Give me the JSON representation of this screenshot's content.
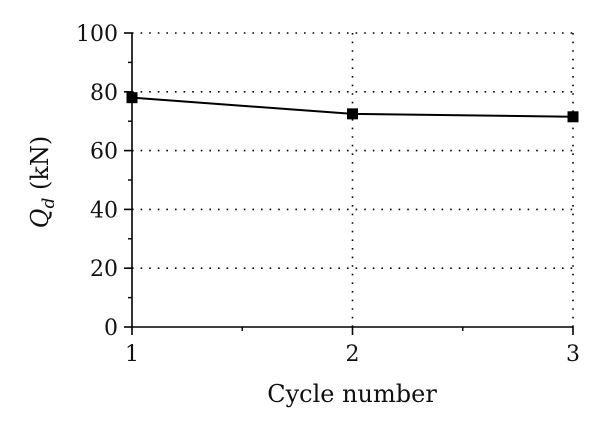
{
  "chart_data": {
    "type": "line",
    "x": [
      1,
      2,
      3
    ],
    "series": [
      {
        "values": [
          78,
          72.5,
          71.5
        ],
        "color": "#000000",
        "marker": "square"
      }
    ],
    "xlabel": "Cycle number",
    "ylabel": {
      "main": "Q",
      "subscript": "d",
      "unit": " (kN)"
    },
    "xlim": [
      1,
      3
    ],
    "ylim": [
      0,
      100
    ],
    "x_ticks": [
      "1",
      "2",
      "3"
    ],
    "y_ticks": [
      "0",
      "20",
      "40",
      "60",
      "80",
      "100"
    ],
    "grid": "dotted"
  }
}
